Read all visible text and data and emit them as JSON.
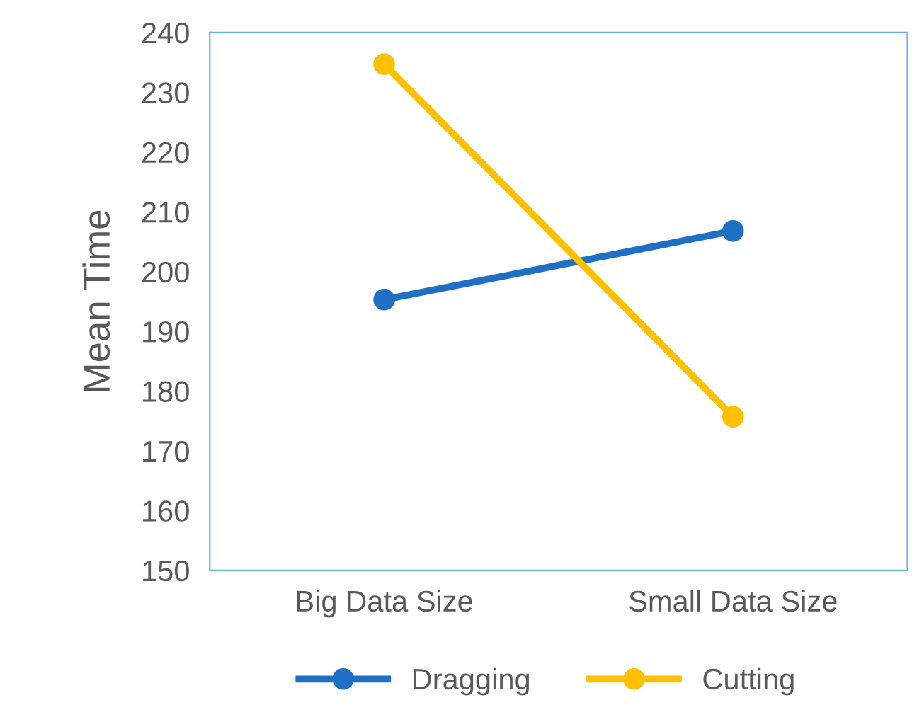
{
  "chart_data": {
    "type": "line",
    "ylabel": "Mean Time",
    "categories": [
      "Big Data Size",
      "Small Data Size"
    ],
    "series": [
      {
        "name": "Dragging",
        "color": "#1f6fc5",
        "values": [
          195.3,
          206.8
        ]
      },
      {
        "name": "Cutting",
        "color": "#ffc000",
        "values": [
          234.7,
          175.7
        ]
      }
    ],
    "ylim": [
      150,
      240
    ],
    "yticks": [
      150,
      160,
      170,
      180,
      190,
      200,
      210,
      220,
      230,
      240
    ],
    "grid": false,
    "legend": "bottom",
    "marker": "circle",
    "line_style": "solid"
  }
}
